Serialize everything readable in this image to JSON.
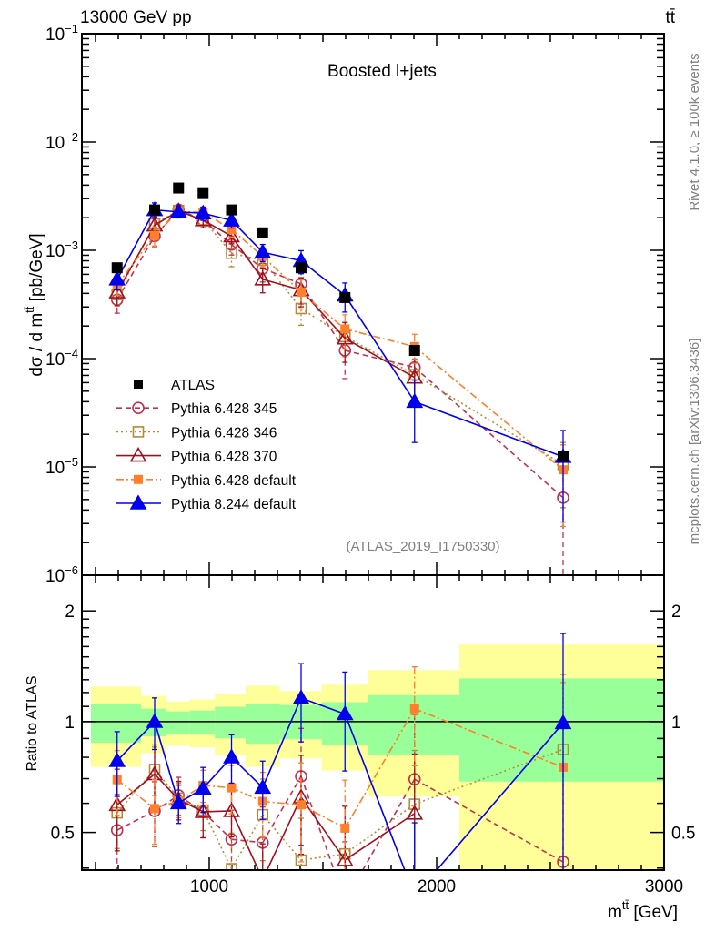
{
  "header": {
    "beam": "13000 GeV pp",
    "process": "tt̄",
    "rivet_info": "Rivet 4.1.0, ≥ 100k events",
    "source": "mcplots.cern.ch [arXiv:1306.3436]"
  },
  "chart_data": {
    "type": "line",
    "title": "Boosted l+jets",
    "analysis": "(ATLAS_2019_I1750330)",
    "xlabel": {
      "main": "m",
      "sup": "tt̄",
      "unit": " [GeV]"
    },
    "ylabel": {
      "main": "dσ / d m",
      "sup": "tt̄",
      "unit": " [pb/GeV]"
    },
    "ratio_ylabel": "Ratio to ATLAS",
    "xlim": [
      440,
      3000
    ],
    "ylim": [
      1e-06,
      0.1
    ],
    "yscale": "log",
    "ratio_ylim": [
      0.395,
      2.5
    ],
    "ratio_yscale": "log",
    "x_ticks": [
      {
        "v": 1000,
        "label": "1000"
      },
      {
        "v": 2000,
        "label": "2000"
      },
      {
        "v": 3000,
        "label": "3000"
      }
    ],
    "y_ticks": [
      {
        "exp": -1,
        "base": "10",
        "sup": "−1"
      },
      {
        "exp": -2,
        "base": "10",
        "sup": "−2"
      },
      {
        "exp": -3,
        "base": "10",
        "sup": "−3"
      },
      {
        "exp": -4,
        "base": "10",
        "sup": "−4"
      },
      {
        "exp": -5,
        "base": "10",
        "sup": "−5"
      },
      {
        "exp": -6,
        "base": "10",
        "sup": "−6"
      }
    ],
    "ratio_ticks": [
      {
        "v": 2,
        "label": "2"
      },
      {
        "v": 1,
        "label": "1"
      },
      {
        "v": 0.5,
        "label": "0.5"
      }
    ],
    "bin_edges": [
      480,
      700,
      810,
      915,
      1025,
      1160,
      1310,
      1495,
      1700,
      2100,
      3000
    ],
    "x": [
      595,
      760,
      865,
      973,
      1098,
      1235,
      1404,
      1597,
      1903,
      2556
    ],
    "data": {
      "name": "ATLAS",
      "color": "#000000",
      "values": [
        0.00069,
        0.00236,
        0.00376,
        0.00334,
        0.00236,
        0.00145,
        0.00069,
        0.000366,
        0.000119,
        1.25e-05
      ]
    },
    "ratio_bands": {
      "inner_color": "#99ff99",
      "outer_color": "#ffff99",
      "inner": [
        [
          0.876,
          1.12
        ],
        [
          0.912,
          1.084
        ],
        [
          0.928,
          1.066
        ],
        [
          0.922,
          1.072
        ],
        [
          0.901,
          1.097
        ],
        [
          0.871,
          1.12
        ],
        [
          0.896,
          1.11
        ],
        [
          0.866,
          1.129
        ],
        [
          0.812,
          1.18
        ],
        [
          0.687,
          1.31
        ]
      ],
      "outer": [
        [
          0.754,
          1.245
        ],
        [
          0.822,
          1.175
        ],
        [
          0.86,
          1.135
        ],
        [
          0.851,
          1.149
        ],
        [
          0.808,
          1.189
        ],
        [
          0.754,
          1.252
        ],
        [
          0.794,
          1.21
        ],
        [
          0.736,
          1.26
        ],
        [
          0.626,
          1.38
        ],
        [
          0.35,
          1.62
        ]
      ]
    },
    "series": [
      {
        "name": "Pythia 6.428 345",
        "color": "#c0304f",
        "dash": "6,4",
        "marker": "circle-open",
        "values": [
          0.00035,
          0.00135,
          0.00237,
          0.0019,
          0.00113,
          0.00068,
          0.00049,
          0.000119,
          8.3e-05,
          5.2e-06
        ],
        "rel_err": [
          0.25,
          0.2,
          0.12,
          0.15,
          0.2,
          0.25,
          0.35,
          0.45,
          0.5,
          0.85
        ]
      },
      {
        "name": "Pythia 6.428 346",
        "color": "#b5893a",
        "dash": "2,3",
        "marker": "square-open",
        "values": [
          0.00039,
          0.00175,
          0.00233,
          0.00192,
          0.00094,
          0.00081,
          0.00029,
          0.00016,
          7.1e-05,
          1.05e-05
        ],
        "rel_err": [
          0.2,
          0.15,
          0.1,
          0.12,
          0.25,
          0.25,
          0.3,
          0.35,
          0.4,
          0.6
        ]
      },
      {
        "name": "Pythia 6.428 370",
        "color": "#a00f1e",
        "dash": "",
        "marker": "triangle-open",
        "values": [
          0.00041,
          0.0017,
          0.00231,
          0.0019,
          0.00135,
          0.00054,
          0.00043,
          0.000154,
          6.7e-05,
          null
        ],
        "rel_err": [
          0.25,
          0.2,
          0.12,
          0.15,
          0.15,
          0.25,
          0.3,
          0.4,
          0.45,
          0
        ]
      },
      {
        "name": "Pythia 6.428 default",
        "color": "#ff7f2a",
        "dash": "8,3,2,3",
        "marker": "square-filled",
        "values": [
          0.00048,
          0.00137,
          0.00229,
          0.00224,
          0.00156,
          0.00088,
          0.00041,
          0.000188,
          0.000129,
          9.4e-06
        ],
        "rel_err": [
          0.2,
          0.2,
          0.1,
          0.1,
          0.15,
          0.2,
          0.3,
          0.35,
          0.3,
          0.7
        ]
      },
      {
        "name": "Pythia 8.244 default",
        "color": "#0000ee",
        "dash": "",
        "marker": "triangle-filled",
        "values": [
          0.00054,
          0.00236,
          0.00226,
          0.0022,
          0.00189,
          0.00096,
          0.0008,
          0.000384,
          4e-05,
          1.24e-05
        ],
        "rel_err": [
          0.2,
          0.16,
          0.12,
          0.14,
          0.15,
          0.18,
          0.24,
          0.3,
          0.58,
          0.75
        ]
      }
    ]
  }
}
